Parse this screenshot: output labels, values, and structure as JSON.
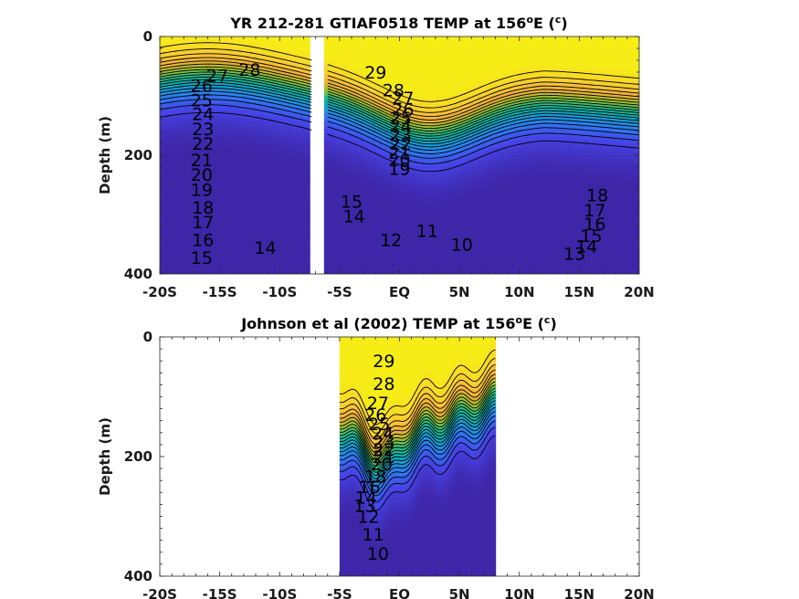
{
  "chart_data": [
    {
      "type": "heatmap",
      "title": "YR 212-281 GTIAF0518 TEMP at 156",
      "title_sup": "o",
      "title_tail": "E (",
      "title_unit": "c",
      "title_close": ")",
      "ylabel": "Depth (m)",
      "xlim": [
        -20,
        20
      ],
      "ylim": [
        0,
        400
      ],
      "x_ticks": [
        "-20S",
        "-15S",
        "-10S",
        "-5S",
        "EQ",
        "5N",
        "10N",
        "15N",
        "20N"
      ],
      "y_ticks": [
        "0",
        "200",
        "400"
      ],
      "gap_latitudes": [
        -7.3,
        -6.3
      ],
      "colormap": [
        "#3e26a8",
        "#4744e8",
        "#2f78f1",
        "#1a9bd7",
        "#06b5ad",
        "#3cc177",
        "#a6c22a",
        "#f3ae3e",
        "#f9d02d",
        "#f6ed16"
      ],
      "isotherms_C": [
        10,
        11,
        12,
        13,
        14,
        15,
        16,
        17,
        18,
        19,
        20,
        21,
        22,
        23,
        24,
        25,
        26,
        27,
        28,
        29
      ],
      "labels": [
        {
          "t": "28",
          "lat": -12.5,
          "depth": 55
        },
        {
          "t": "27",
          "lat": -15.2,
          "depth": 65
        },
        {
          "t": "26",
          "lat": -16.5,
          "depth": 82
        },
        {
          "t": "25",
          "lat": -16.5,
          "depth": 107
        },
        {
          "t": "24",
          "lat": -16.4,
          "depth": 130
        },
        {
          "t": "23",
          "lat": -16.4,
          "depth": 155
        },
        {
          "t": "22",
          "lat": -16.4,
          "depth": 180
        },
        {
          "t": "21",
          "lat": -16.5,
          "depth": 208
        },
        {
          "t": "20",
          "lat": -16.5,
          "depth": 232
        },
        {
          "t": "19",
          "lat": -16.5,
          "depth": 258
        },
        {
          "t": "18",
          "lat": -16.4,
          "depth": 288
        },
        {
          "t": "17",
          "lat": -16.4,
          "depth": 312
        },
        {
          "t": "16",
          "lat": -16.4,
          "depth": 342
        },
        {
          "t": "15",
          "lat": -16.5,
          "depth": 372
        },
        {
          "t": "14",
          "lat": -11.2,
          "depth": 355
        },
        {
          "t": "29",
          "lat": -2.0,
          "depth": 60
        },
        {
          "t": "28",
          "lat": -0.5,
          "depth": 90
        },
        {
          "t": "27",
          "lat": 0.3,
          "depth": 103
        },
        {
          "t": "26",
          "lat": 0.3,
          "depth": 122
        },
        {
          "t": "25",
          "lat": 0.1,
          "depth": 137
        },
        {
          "t": "24",
          "lat": 0.1,
          "depth": 150
        },
        {
          "t": "23",
          "lat": 0.1,
          "depth": 165
        },
        {
          "t": "22",
          "lat": 0.1,
          "depth": 180
        },
        {
          "t": "21",
          "lat": 0.0,
          "depth": 195
        },
        {
          "t": "20",
          "lat": 0.0,
          "depth": 208
        },
        {
          "t": "19",
          "lat": 0.0,
          "depth": 222
        },
        {
          "t": "15",
          "lat": -4.0,
          "depth": 278
        },
        {
          "t": "14",
          "lat": -3.8,
          "depth": 302
        },
        {
          "t": "12",
          "lat": -0.7,
          "depth": 342
        },
        {
          "t": "11",
          "lat": 2.3,
          "depth": 327
        },
        {
          "t": "10",
          "lat": 5.2,
          "depth": 350
        },
        {
          "t": "18",
          "lat": 16.5,
          "depth": 267
        },
        {
          "t": "17",
          "lat": 16.3,
          "depth": 292
        },
        {
          "t": "16",
          "lat": 16.3,
          "depth": 315
        },
        {
          "t": "15",
          "lat": 16.0,
          "depth": 335
        },
        {
          "t": "14",
          "lat": 15.6,
          "depth": 353
        },
        {
          "t": "13",
          "lat": 14.6,
          "depth": 365
        }
      ]
    },
    {
      "type": "heatmap",
      "title": "Johnson et al (2002) TEMP at 156",
      "title_sup": "o",
      "title_tail": "E (",
      "title_unit": "c",
      "title_close": ")",
      "ylabel": "Depth (m)",
      "xlim": [
        -20,
        20
      ],
      "ylim": [
        0,
        400
      ],
      "x_ticks": [
        "-20S",
        "-15S",
        "-10S",
        "-5S",
        "EQ",
        "5N",
        "10N",
        "15N",
        "20N"
      ],
      "y_ticks": [
        "0",
        "200",
        "400"
      ],
      "data_range_lat": [
        -5,
        8
      ],
      "colormap": [
        "#3e26a8",
        "#4744e8",
        "#2f78f1",
        "#1a9bd7",
        "#06b5ad",
        "#3cc177",
        "#a6c22a",
        "#f3ae3e",
        "#f9d02d",
        "#f6ed16"
      ],
      "isotherms_C": [
        10,
        11,
        12,
        13,
        14,
        15,
        16,
        17,
        18,
        19,
        20,
        21,
        22,
        23,
        24,
        25,
        26,
        27,
        28,
        29
      ],
      "labels": [
        {
          "t": "29",
          "lat": -1.3,
          "depth": 40
        },
        {
          "t": "28",
          "lat": -1.3,
          "depth": 78
        },
        {
          "t": "27",
          "lat": -1.8,
          "depth": 110
        },
        {
          "t": "26",
          "lat": -2.0,
          "depth": 130
        },
        {
          "t": "25",
          "lat": -1.7,
          "depth": 145
        },
        {
          "t": "24",
          "lat": -1.4,
          "depth": 160
        },
        {
          "t": "23",
          "lat": -1.3,
          "depth": 175
        },
        {
          "t": "22",
          "lat": -1.3,
          "depth": 188
        },
        {
          "t": "21",
          "lat": -1.3,
          "depth": 200
        },
        {
          "t": "20",
          "lat": -1.5,
          "depth": 212
        },
        {
          "t": "18",
          "lat": -2.0,
          "depth": 233
        },
        {
          "t": "16",
          "lat": -2.5,
          "depth": 250
        },
        {
          "t": "14",
          "lat": -2.8,
          "depth": 268
        },
        {
          "t": "13",
          "lat": -2.9,
          "depth": 282
        },
        {
          "t": "12",
          "lat": -2.6,
          "depth": 300
        },
        {
          "t": "11",
          "lat": -2.2,
          "depth": 330
        },
        {
          "t": "10",
          "lat": -1.8,
          "depth": 362
        }
      ]
    }
  ]
}
